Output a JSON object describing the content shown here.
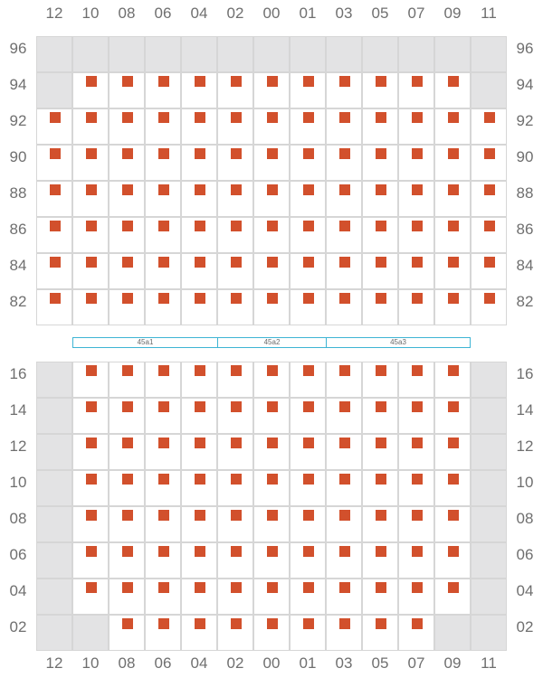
{
  "columns": [
    "12",
    "10",
    "08",
    "06",
    "04",
    "02",
    "00",
    "01",
    "03",
    "05",
    "07",
    "09",
    "11"
  ],
  "upper_block": {
    "rows": [
      {
        "label": "96",
        "cells": "BBBBBBBBBBBBB"
      },
      {
        "label": "94",
        "cells": "BSSSSSSSSSSSB"
      },
      {
        "label": "92",
        "cells": "SSSSSSSSSSSSS"
      },
      {
        "label": "90",
        "cells": "SSSSSSSSSSSSS"
      },
      {
        "label": "88",
        "cells": "SSSSSSSSSSSSS"
      },
      {
        "label": "86",
        "cells": "SSSSSSSSSSSSS"
      },
      {
        "label": "84",
        "cells": "SSSSSSSSSSSSS"
      },
      {
        "label": "82",
        "cells": "SSSSSSSSSSSSS"
      }
    ]
  },
  "lower_block": {
    "rows": [
      {
        "label": "16",
        "cells": "BSSSSSSSSSSSB"
      },
      {
        "label": "14",
        "cells": "BSSSSSSSSSSSB"
      },
      {
        "label": "12",
        "cells": "BSSSSSSSSSSSB"
      },
      {
        "label": "10",
        "cells": "BSSSSSSSSSSSB"
      },
      {
        "label": "08",
        "cells": "BSSSSSSSSSSSB"
      },
      {
        "label": "06",
        "cells": "BSSSSSSSSSSSB"
      },
      {
        "label": "04",
        "cells": "BSSSSSSSSSSSB"
      },
      {
        "label": "02",
        "cells": "BBSSSSSSSSSBB"
      }
    ]
  },
  "sections": [
    {
      "label": "45a1",
      "col_start": 1,
      "col_span": 4
    },
    {
      "label": "45a2",
      "col_start": 5,
      "col_span": 3
    },
    {
      "label": "45a3",
      "col_start": 8,
      "col_span": 4
    }
  ],
  "colors": {
    "seat": "#d2502c",
    "blocked": "#e3e3e4",
    "grid_line": "#d6d6d6",
    "section_border": "#3eb4d4",
    "label": "#6f6f6f"
  }
}
